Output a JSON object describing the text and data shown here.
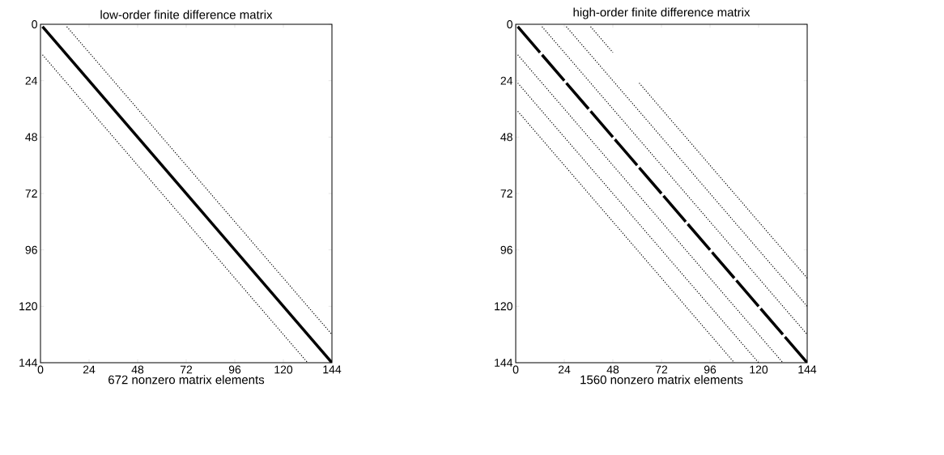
{
  "chart_data": [
    {
      "type": "line",
      "title": "low-order finite difference matrix",
      "xlabel": "672 nonzero matrix elements",
      "xlim": [
        0,
        144
      ],
      "ylim": [
        144,
        0
      ],
      "xticks": [
        0,
        24,
        48,
        72,
        96,
        120,
        144
      ],
      "yticks": [
        0,
        24,
        48,
        72,
        96,
        120,
        144
      ],
      "marker": "none",
      "series": [
        {
          "color": "#000000",
          "line_style": "solid",
          "x": [
            1,
            144
          ],
          "values": [
            1,
            144
          ]
        },
        {
          "color": "#000000",
          "line_style": "dotted",
          "x": [
            13,
            144
          ],
          "values": [
            1,
            132
          ]
        },
        {
          "color": "#000000",
          "line_style": "dotted",
          "x": [
            1,
            132
          ],
          "values": [
            13,
            144
          ]
        }
      ]
    },
    {
      "type": "line",
      "title": "high-order finite difference matrix",
      "xlabel": "1560 nonzero matrix elements",
      "xlim": [
        0,
        144
      ],
      "ylim": [
        144,
        0
      ],
      "xticks": [
        0,
        24,
        48,
        72,
        96,
        120,
        144
      ],
      "yticks": [
        0,
        24,
        48,
        72,
        96,
        120,
        144
      ],
      "marker": "none",
      "series": [
        {
          "color": "#000000",
          "line_style": "solid",
          "x": [
            1,
            12,
            12.5,
            13,
            24,
            24.5,
            25,
            36,
            36.5,
            37,
            48,
            48.5,
            49,
            60,
            60.5,
            61,
            72,
            72.5,
            73,
            84,
            84.5,
            85,
            96,
            96.5,
            97,
            108,
            108.5,
            109,
            120,
            120.5,
            121,
            132,
            132.5,
            133,
            144
          ],
          "values": [
            1,
            12,
            null,
            13,
            24,
            null,
            25,
            36,
            null,
            37,
            48,
            null,
            49,
            60,
            null,
            61,
            72,
            null,
            73,
            84,
            null,
            85,
            96,
            null,
            97,
            108,
            null,
            109,
            120,
            null,
            121,
            132,
            null,
            133,
            144
          ]
        },
        {
          "color": "#000000",
          "line_style": "dotted",
          "x": [
            13,
            144
          ],
          "values": [
            1,
            132
          ]
        },
        {
          "color": "#000000",
          "line_style": "dotted",
          "x": [
            25,
            144
          ],
          "values": [
            1,
            120
          ]
        },
        {
          "color": "#000000",
          "line_style": "dotted",
          "x": [
            37,
            48
          ],
          "values": [
            1,
            12
          ]
        },
        {
          "color": "#000000",
          "line_style": "dotted",
          "x": [
            61,
            144
          ],
          "values": [
            25,
            108
          ]
        },
        {
          "color": "#000000",
          "line_style": "dotted",
          "x": [
            1,
            132
          ],
          "values": [
            13,
            144
          ]
        },
        {
          "color": "#000000",
          "line_style": "dotted",
          "x": [
            1,
            120
          ],
          "values": [
            25,
            144
          ]
        },
        {
          "color": "#000000",
          "line_style": "dotted",
          "x": [
            1,
            108
          ],
          "values": [
            37,
            144
          ]
        }
      ]
    }
  ]
}
